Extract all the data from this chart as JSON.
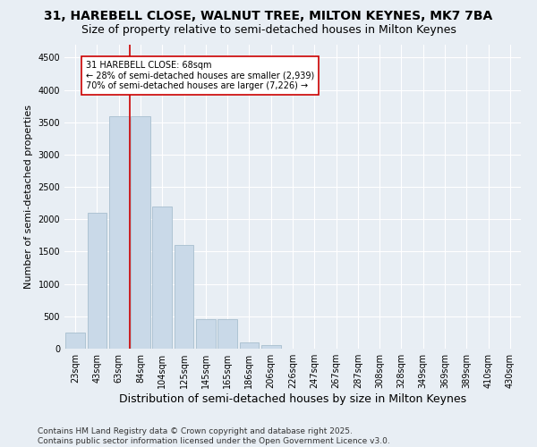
{
  "title_line1": "31, HAREBELL CLOSE, WALNUT TREE, MILTON KEYNES, MK7 7BA",
  "title_line2": "Size of property relative to semi-detached houses in Milton Keynes",
  "xlabel": "Distribution of semi-detached houses by size in Milton Keynes",
  "ylabel": "Number of semi-detached properties",
  "categories": [
    "23sqm",
    "43sqm",
    "63sqm",
    "84sqm",
    "104sqm",
    "125sqm",
    "145sqm",
    "165sqm",
    "186sqm",
    "206sqm",
    "226sqm",
    "247sqm",
    "267sqm",
    "287sqm",
    "308sqm",
    "328sqm",
    "349sqm",
    "369sqm",
    "389sqm",
    "410sqm",
    "430sqm"
  ],
  "values": [
    250,
    2100,
    3600,
    3600,
    2200,
    1600,
    450,
    450,
    100,
    60,
    0,
    0,
    0,
    0,
    0,
    0,
    0,
    0,
    0,
    0,
    0
  ],
  "bar_color": "#c9d9e8",
  "bar_edge_color": "#a8bece",
  "vline_color": "#cc0000",
  "annotation_text": "31 HAREBELL CLOSE: 68sqm\n← 28% of semi-detached houses are smaller (2,939)\n70% of semi-detached houses are larger (7,226) →",
  "annotation_box_color": "#ffffff",
  "annotation_box_edge": "#cc0000",
  "ylim": [
    0,
    4700
  ],
  "yticks": [
    0,
    500,
    1000,
    1500,
    2000,
    2500,
    3000,
    3500,
    4000,
    4500
  ],
  "background_color": "#e8eef4",
  "footer_text": "Contains HM Land Registry data © Crown copyright and database right 2025.\nContains public sector information licensed under the Open Government Licence v3.0.",
  "title_fontsize": 10,
  "subtitle_fontsize": 9,
  "axis_label_fontsize": 8,
  "tick_fontsize": 7,
  "annotation_fontsize": 7,
  "footer_fontsize": 6.5
}
